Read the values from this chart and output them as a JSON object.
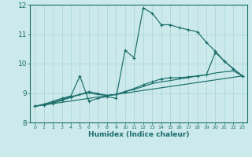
{
  "xlabel": "Humidex (Indice chaleur)",
  "xlim": [
    -0.5,
    23.5
  ],
  "ylim": [
    8,
    12
  ],
  "yticks": [
    8,
    9,
    10,
    11,
    12
  ],
  "xticks": [
    0,
    1,
    2,
    3,
    4,
    5,
    6,
    7,
    8,
    9,
    10,
    11,
    12,
    13,
    14,
    15,
    16,
    17,
    18,
    19,
    20,
    21,
    22,
    23
  ],
  "bg_color": "#cce9eb",
  "grid_color": "#a8d4d7",
  "line_color": "#1a6e6a",
  "line1_y": [
    8.55,
    8.62,
    8.72,
    8.82,
    8.9,
    9.58,
    8.72,
    8.82,
    8.88,
    8.82,
    10.45,
    10.2,
    11.88,
    11.72,
    11.32,
    11.32,
    11.22,
    11.15,
    11.08,
    10.72,
    10.42,
    10.08,
    9.82,
    9.58
  ],
  "line2_y": [
    8.55,
    8.6,
    8.68,
    8.78,
    8.88,
    8.95,
    9.0,
    8.95,
    8.92,
    8.95,
    9.05,
    9.12,
    9.22,
    9.32,
    9.38,
    9.42,
    9.48,
    9.52,
    9.58,
    9.62,
    9.68,
    9.72,
    9.75,
    9.58
  ],
  "line3_y": [
    8.55,
    8.6,
    8.65,
    8.75,
    8.85,
    8.95,
    9.05,
    8.98,
    8.92,
    8.95,
    9.05,
    9.15,
    9.28,
    9.38,
    9.48,
    9.52,
    9.52,
    9.55,
    9.58,
    9.62,
    10.38,
    10.08,
    9.82,
    9.58
  ],
  "line4_x": [
    0,
    23
  ],
  "line4_y": [
    8.55,
    9.58
  ]
}
